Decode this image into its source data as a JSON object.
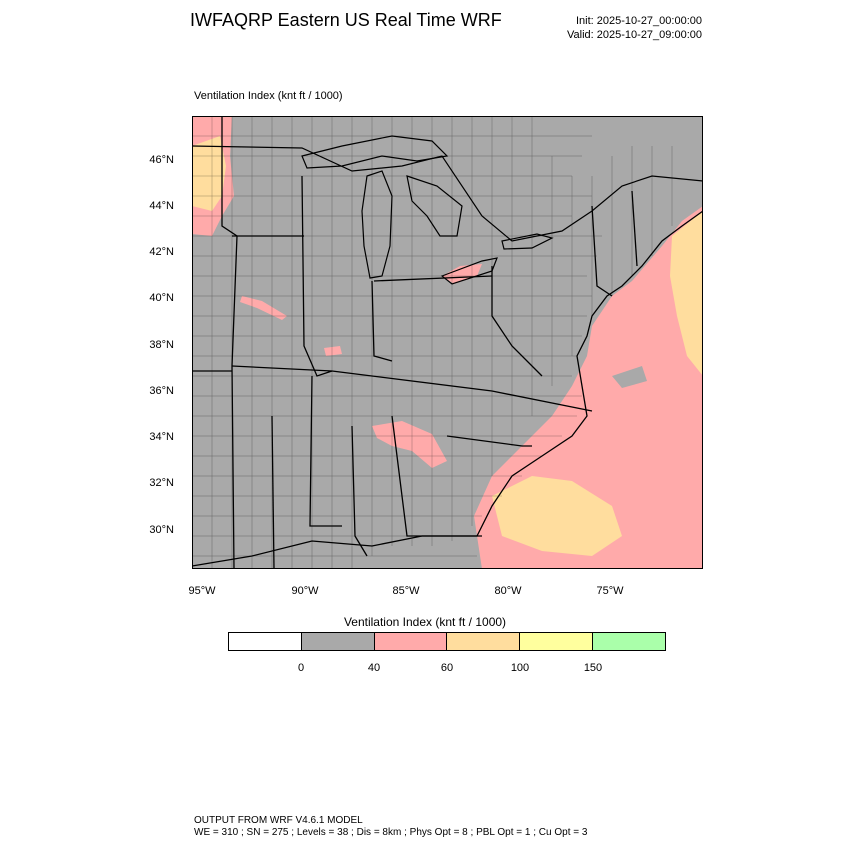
{
  "header": {
    "title": "IWFAQRP Eastern US Real Time WRF",
    "init": "Init: 2025-10-27_00:00:00",
    "valid": "Valid: 2025-10-27_09:00:00"
  },
  "field_label": "Ventilation Index   (knt ft / 1000)",
  "map": {
    "lat_labels": [
      "46°N",
      "44°N",
      "42°N",
      "40°N",
      "38°N",
      "36°N",
      "34°N",
      "32°N",
      "30°N"
    ],
    "lon_labels": [
      "95°W",
      "90°W",
      "85°W",
      "80°W",
      "75°W"
    ],
    "colors": {
      "land_water_fill": "#a9a9a9",
      "low_band": "#ffaaaa",
      "mid_band": "#ffdd9e",
      "boundary": "#000000"
    }
  },
  "colorbar": {
    "title": "Ventilation Index  (knt ft / 1000)",
    "colors": [
      "#ffffff",
      "#a9a9a9",
      "#ffaaaa",
      "#ffdd9e",
      "#ffff9e",
      "#aaffaa"
    ],
    "ticks": [
      "0",
      "40",
      "60",
      "100",
      "150"
    ]
  },
  "footer": {
    "line1": "OUTPUT FROM WRF V4.6.1 MODEL",
    "line2": "WE = 310 ; SN = 275 ; Levels = 38 ; Dis = 8km ; Phys Opt = 8 ; PBL Opt = 1 ; Cu Opt = 3"
  }
}
